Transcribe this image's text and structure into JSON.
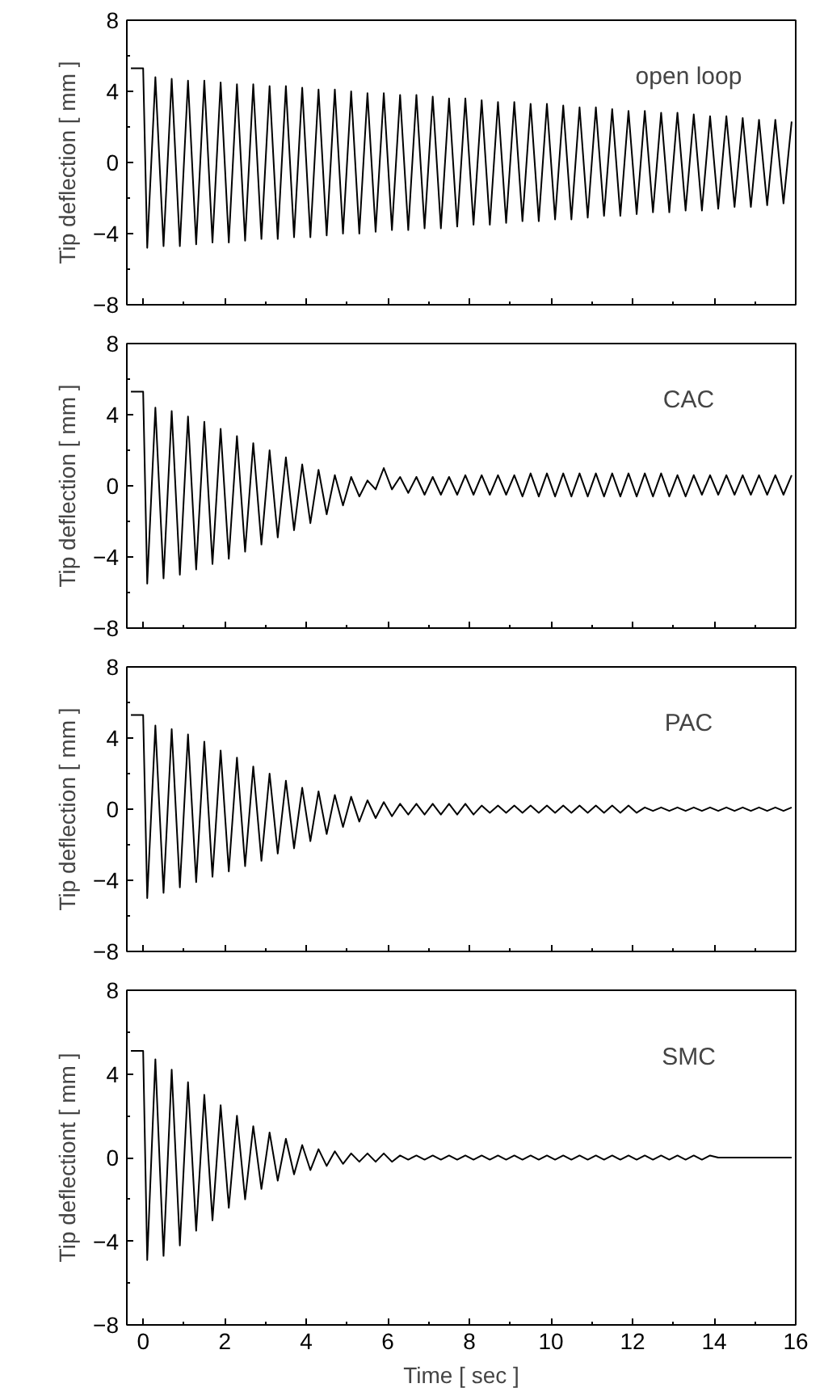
{
  "chart_data": [
    {
      "type": "line",
      "ylabel": "Tip deflection [ mm ]",
      "annotations": [
        "open loop"
      ],
      "tick_labels": "y",
      "xlim": [
        -0.4,
        16
      ],
      "xticks": [
        0,
        2,
        4,
        6,
        8,
        10,
        12,
        14,
        16
      ],
      "ylim": [
        -8,
        8
      ],
      "yticks": [
        -8,
        -4,
        0,
        4,
        8
      ],
      "series": [
        {
          "color": "#000000",
          "x": [
            -0.3,
            0,
            0.1,
            0.3,
            0.5,
            0.7,
            0.9,
            1.1,
            1.3,
            1.5,
            1.7,
            1.9,
            2.1,
            2.3,
            2.5,
            2.7,
            2.9,
            3.1,
            3.3,
            3.5,
            3.7,
            3.9,
            4.1,
            4.3,
            4.5,
            4.7,
            4.9,
            5.1,
            5.3,
            5.5,
            5.7,
            5.9,
            6.1,
            6.3,
            6.5,
            6.7,
            6.9,
            7.1,
            7.3,
            7.5,
            7.7,
            7.9,
            8.1,
            8.3,
            8.5,
            8.7,
            8.9,
            9.1,
            9.3,
            9.5,
            9.7,
            9.9,
            10.1,
            10.3,
            10.5,
            10.7,
            10.9,
            11.1,
            11.3,
            11.5,
            11.7,
            11.9,
            12.1,
            12.3,
            12.5,
            12.7,
            12.9,
            13.1,
            13.3,
            13.5,
            13.7,
            13.9,
            14.1,
            14.3,
            14.5,
            14.7,
            14.9,
            15.1,
            15.3,
            15.5,
            15.7,
            15.9
          ],
          "values": [
            5.3,
            5.3,
            -4.8,
            4.8,
            -4.7,
            4.7,
            -4.7,
            4.6,
            -4.6,
            4.6,
            -4.5,
            4.5,
            -4.5,
            4.4,
            -4.4,
            4.4,
            -4.3,
            4.3,
            -4.3,
            4.3,
            -4.2,
            4.2,
            -4.2,
            4.1,
            -4.1,
            4.1,
            -4.0,
            4.0,
            -4.0,
            3.9,
            -3.9,
            3.9,
            -3.8,
            3.8,
            -3.8,
            3.8,
            -3.7,
            3.7,
            -3.7,
            3.6,
            -3.6,
            3.6,
            -3.5,
            3.5,
            -3.5,
            3.4,
            -3.4,
            3.4,
            -3.3,
            3.3,
            -3.3,
            3.3,
            -3.2,
            3.2,
            -3.2,
            3.1,
            -3.1,
            3.1,
            -3.0,
            3.0,
            -3.0,
            2.9,
            -2.9,
            2.9,
            -2.8,
            2.8,
            -2.8,
            2.8,
            -2.7,
            2.7,
            -2.7,
            2.6,
            -2.6,
            2.6,
            -2.5,
            2.5,
            -2.5,
            2.4,
            -2.4,
            2.4,
            -2.3,
            2.3
          ]
        }
      ]
    },
    {
      "type": "line",
      "ylabel": "Tip deflection [ mm ]",
      "annotations": [
        "CAC"
      ],
      "tick_labels": "y",
      "xlim": [
        -0.4,
        16
      ],
      "xticks": [
        0,
        2,
        4,
        6,
        8,
        10,
        12,
        14,
        16
      ],
      "ylim": [
        -8,
        8
      ],
      "yticks": [
        -8,
        -4,
        0,
        4,
        8
      ],
      "series": [
        {
          "color": "#000000",
          "x": [
            -0.3,
            0,
            0.1,
            0.3,
            0.5,
            0.7,
            0.9,
            1.1,
            1.3,
            1.5,
            1.7,
            1.9,
            2.1,
            2.3,
            2.5,
            2.7,
            2.9,
            3.1,
            3.3,
            3.5,
            3.7,
            3.9,
            4.1,
            4.3,
            4.5,
            4.7,
            4.9,
            5.1,
            5.3,
            5.5,
            5.7,
            5.9,
            6.1,
            6.3,
            6.5,
            6.7,
            6.9,
            7.1,
            7.3,
            7.5,
            7.7,
            7.9,
            8.1,
            8.3,
            8.5,
            8.7,
            8.9,
            9.1,
            9.3,
            9.5,
            9.7,
            9.9,
            10.1,
            10.3,
            10.5,
            10.7,
            10.9,
            11.1,
            11.3,
            11.5,
            11.7,
            11.9,
            12.1,
            12.3,
            12.5,
            12.7,
            12.9,
            13.1,
            13.3,
            13.5,
            13.7,
            13.9,
            14.1,
            14.3,
            14.5,
            14.7,
            14.9,
            15.1,
            15.3,
            15.5,
            15.7,
            15.9
          ],
          "values": [
            5.3,
            5.3,
            -5.5,
            4.4,
            -5.2,
            4.2,
            -5.0,
            3.9,
            -4.7,
            3.6,
            -4.4,
            3.2,
            -4.1,
            2.8,
            -3.7,
            2.4,
            -3.3,
            2.0,
            -2.9,
            1.6,
            -2.5,
            1.2,
            -2.1,
            0.9,
            -1.6,
            0.6,
            -1.1,
            0.5,
            -0.6,
            0.3,
            -0.2,
            1.0,
            -0.2,
            0.5,
            -0.4,
            0.5,
            -0.5,
            0.5,
            -0.5,
            0.5,
            -0.5,
            0.6,
            -0.5,
            0.6,
            -0.5,
            0.6,
            -0.5,
            0.6,
            -0.6,
            0.7,
            -0.6,
            0.7,
            -0.6,
            0.7,
            -0.6,
            0.7,
            -0.6,
            0.7,
            -0.6,
            0.7,
            -0.6,
            0.7,
            -0.6,
            0.7,
            -0.6,
            0.7,
            -0.6,
            0.6,
            -0.6,
            0.6,
            -0.5,
            0.6,
            -0.5,
            0.6,
            -0.5,
            0.6,
            -0.5,
            0.6,
            -0.5,
            0.6,
            -0.5,
            0.6
          ]
        }
      ]
    },
    {
      "type": "line",
      "ylabel": "Tip deflection [ mm ]",
      "annotations": [
        "PAC"
      ],
      "tick_labels": "y",
      "xlim": [
        -0.4,
        16
      ],
      "xticks": [
        0,
        2,
        4,
        6,
        8,
        10,
        12,
        14,
        16
      ],
      "ylim": [
        -8,
        8
      ],
      "yticks": [
        -8,
        -4,
        0,
        4,
        8
      ],
      "series": [
        {
          "color": "#000000",
          "x": [
            -0.3,
            0,
            0.1,
            0.3,
            0.5,
            0.7,
            0.9,
            1.1,
            1.3,
            1.5,
            1.7,
            1.9,
            2.1,
            2.3,
            2.5,
            2.7,
            2.9,
            3.1,
            3.3,
            3.5,
            3.7,
            3.9,
            4.1,
            4.3,
            4.5,
            4.7,
            4.9,
            5.1,
            5.3,
            5.5,
            5.7,
            5.9,
            6.1,
            6.3,
            6.5,
            6.7,
            6.9,
            7.1,
            7.3,
            7.5,
            7.7,
            7.9,
            8.1,
            8.3,
            8.5,
            8.7,
            8.9,
            9.1,
            9.3,
            9.5,
            9.7,
            9.9,
            10.1,
            10.3,
            10.5,
            10.7,
            10.9,
            11.1,
            11.3,
            11.5,
            11.7,
            11.9,
            12.1,
            12.3,
            12.5,
            12.7,
            12.9,
            13.1,
            13.3,
            13.5,
            13.7,
            13.9,
            14.1,
            14.3,
            14.5,
            14.7,
            14.9,
            15.1,
            15.3,
            15.5,
            15.7,
            15.9
          ],
          "values": [
            5.3,
            5.3,
            -5.0,
            4.7,
            -4.7,
            4.5,
            -4.4,
            4.2,
            -4.1,
            3.8,
            -3.8,
            3.3,
            -3.5,
            2.9,
            -3.2,
            2.4,
            -2.9,
            2.0,
            -2.5,
            1.6,
            -2.2,
            1.2,
            -1.8,
            1.0,
            -1.4,
            0.8,
            -1.0,
            0.7,
            -0.7,
            0.5,
            -0.5,
            0.4,
            -0.4,
            0.3,
            -0.3,
            0.3,
            -0.3,
            0.3,
            -0.3,
            0.3,
            -0.3,
            0.3,
            -0.3,
            0.2,
            -0.2,
            0.2,
            -0.2,
            0.2,
            -0.2,
            0.2,
            -0.2,
            0.2,
            -0.2,
            0.2,
            -0.2,
            0.2,
            -0.2,
            0.2,
            -0.2,
            0.2,
            -0.2,
            0.2,
            -0.2,
            0.1,
            -0.1,
            0.1,
            -0.1,
            0.1,
            -0.1,
            0.1,
            -0.1,
            0.1,
            -0.1,
            0.1,
            -0.1,
            0.1,
            -0.1,
            0.1,
            -0.1,
            0.1,
            -0.1,
            0.1
          ]
        }
      ]
    },
    {
      "type": "line",
      "ylabel": "Tip deflectiont [ mm ]",
      "xlabel": "Time [ sec ]",
      "annotations": [
        "SMC"
      ],
      "xlim": [
        -0.4,
        16
      ],
      "xticks": [
        0,
        2,
        4,
        6,
        8,
        10,
        12,
        14,
        16
      ],
      "ylim": [
        -8,
        8
      ],
      "yticks": [
        -8,
        -4,
        0,
        4,
        8
      ],
      "series": [
        {
          "color": "#000000",
          "x": [
            -0.3,
            0,
            0.1,
            0.3,
            0.5,
            0.7,
            0.9,
            1.1,
            1.3,
            1.5,
            1.7,
            1.9,
            2.1,
            2.3,
            2.5,
            2.7,
            2.9,
            3.1,
            3.3,
            3.5,
            3.7,
            3.9,
            4.1,
            4.3,
            4.5,
            4.7,
            4.9,
            5.1,
            5.3,
            5.5,
            5.7,
            5.9,
            6.1,
            6.3,
            6.5,
            6.7,
            6.9,
            7.1,
            7.3,
            7.5,
            7.7,
            7.9,
            8.1,
            8.3,
            8.5,
            8.7,
            8.9,
            9.1,
            9.3,
            9.5,
            9.7,
            9.9,
            10.1,
            10.3,
            10.5,
            10.7,
            10.9,
            11.1,
            11.3,
            11.5,
            11.7,
            11.9,
            12.1,
            12.3,
            12.5,
            12.7,
            12.9,
            13.1,
            13.3,
            13.5,
            13.7,
            13.9,
            14.1,
            14.3,
            14.5,
            14.7,
            14.9,
            15.1,
            15.3,
            15.5,
            15.7,
            15.9
          ],
          "values": [
            5.1,
            5.1,
            -4.9,
            4.7,
            -4.7,
            4.2,
            -4.2,
            3.6,
            -3.5,
            3.0,
            -3.0,
            2.5,
            -2.4,
            2.0,
            -2.0,
            1.5,
            -1.5,
            1.2,
            -1.1,
            0.9,
            -0.8,
            0.6,
            -0.6,
            0.4,
            -0.4,
            0.3,
            -0.3,
            0.2,
            -0.2,
            0.2,
            -0.2,
            0.2,
            -0.2,
            0.1,
            -0.1,
            0.1,
            -0.1,
            0.1,
            -0.1,
            0.1,
            -0.1,
            0.1,
            -0.1,
            0.1,
            -0.1,
            0.1,
            -0.1,
            0.1,
            -0.1,
            0.1,
            -0.1,
            0.1,
            -0.1,
            0.1,
            -0.1,
            0.1,
            -0.1,
            0.1,
            -0.1,
            0.1,
            -0.1,
            0.1,
            -0.1,
            0.1,
            -0.1,
            0.1,
            -0.1,
            0.1,
            -0.1,
            0.1,
            -0.1,
            0.1,
            0,
            0,
            0,
            0,
            0,
            0,
            0,
            0,
            0,
            0
          ]
        }
      ]
    }
  ]
}
